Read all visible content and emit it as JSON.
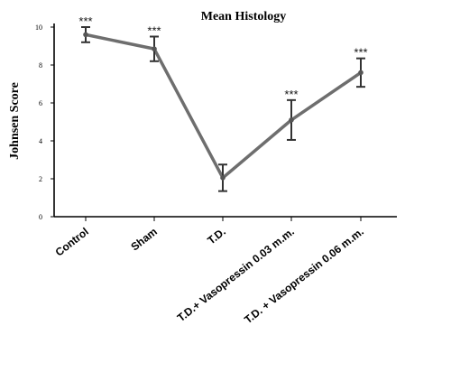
{
  "chart_data": {
    "type": "line",
    "title": "Mean Histology",
    "xlabel": "",
    "ylabel": "Johnsen Score",
    "categories": [
      "Control",
      "Sham",
      "T.D.",
      "T.D.+ Vasopressin 0.03 m.m.",
      "T.D. + Vasopressin 0.06 m.m."
    ],
    "values": [
      9.6,
      8.85,
      2.05,
      5.1,
      7.6
    ],
    "errors": [
      0.4,
      0.65,
      0.7,
      1.05,
      0.75
    ],
    "annotations": [
      "***",
      "***",
      "",
      "***",
      "***"
    ],
    "yticks": [
      "0",
      "2",
      "4",
      "6",
      "8",
      "10"
    ],
    "ylim": [
      0,
      10
    ],
    "grid": false,
    "legend": "none",
    "line_color": "#6e6e6e"
  }
}
